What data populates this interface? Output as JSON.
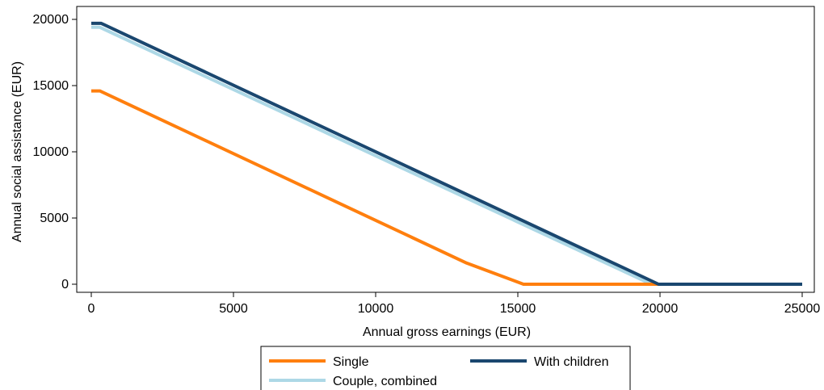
{
  "chart_data": {
    "type": "line",
    "xlabel": "Annual gross earnings (EUR)",
    "ylabel": "Annual social assistance (EUR)",
    "xlim": [
      0,
      25000
    ],
    "ylim": [
      0,
      20000
    ],
    "x_ticks": [
      0,
      5000,
      10000,
      15000,
      20000,
      25000
    ],
    "y_ticks": [
      0,
      5000,
      10000,
      15000,
      20000
    ],
    "x_tick_labels": [
      "0",
      "5000",
      "10000",
      "15000",
      "20000",
      "25000"
    ],
    "y_tick_labels": [
      "0",
      "5000",
      "10000",
      "15000",
      "20000"
    ],
    "grid": false,
    "legend_position": "bottom",
    "series": [
      {
        "name": "Single",
        "color": "#ff7f0e",
        "points": [
          [
            0,
            14600
          ],
          [
            300,
            14600
          ],
          [
            13200,
            1600
          ],
          [
            15200,
            0
          ],
          [
            25000,
            0
          ]
        ]
      },
      {
        "name": "With children",
        "color": "#1a476f",
        "points": [
          [
            0,
            19700
          ],
          [
            350,
            19700
          ],
          [
            19950,
            0
          ],
          [
            25000,
            0
          ]
        ]
      },
      {
        "name": "Couple, combined",
        "color": "#add8e6",
        "points": [
          [
            0,
            19400
          ],
          [
            300,
            19400
          ],
          [
            19700,
            0
          ],
          [
            25000,
            0
          ]
        ]
      }
    ]
  }
}
